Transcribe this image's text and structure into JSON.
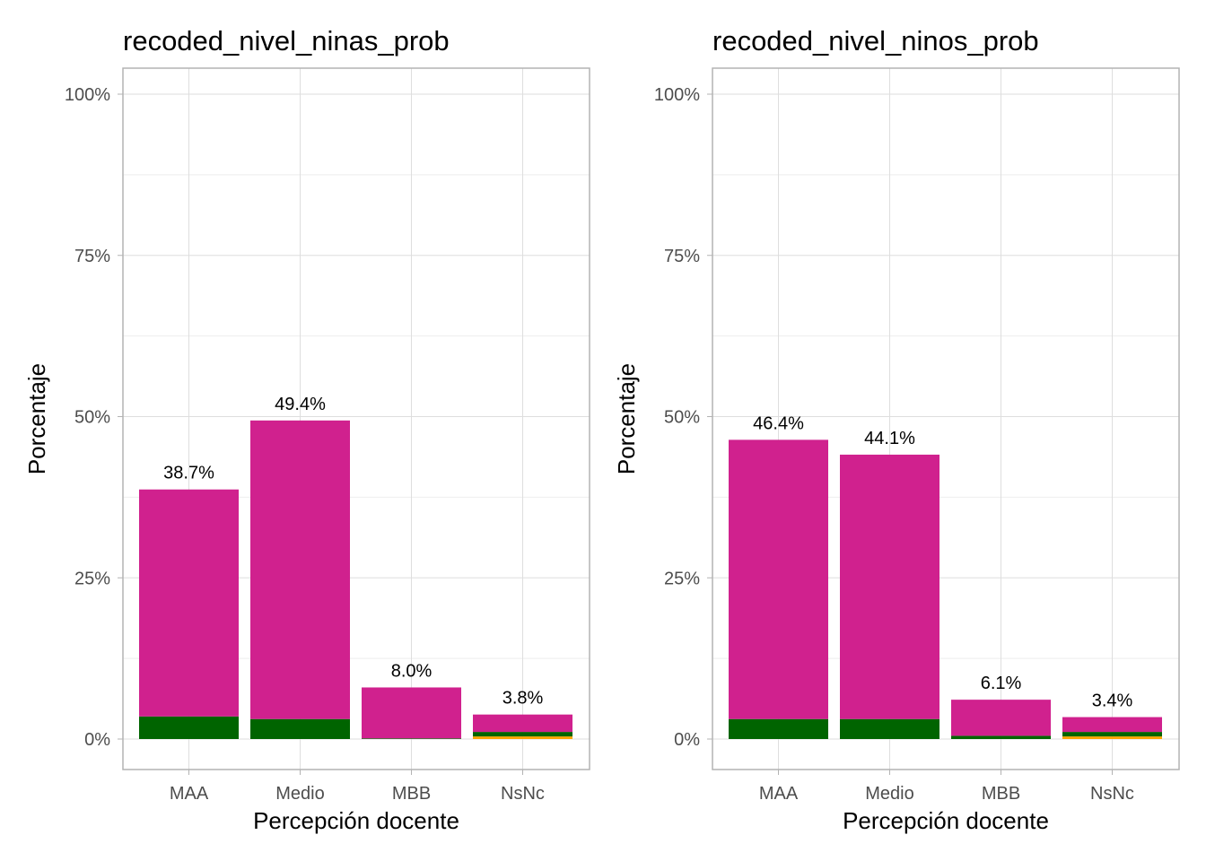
{
  "colors": {
    "background": "#ffffff",
    "grid_major": "#dedede",
    "grid_minor": "#eeeeee",
    "panel_border": "#b3b3b3",
    "tick_text": "#4d4d4d",
    "fill_magenta": "#d0218e",
    "fill_green": "#006400",
    "fill_orange": "#ffa500"
  },
  "chart_data": [
    {
      "type": "bar",
      "stacked": true,
      "title": "recoded_nivel_ninas_prob",
      "xlabel": "Percepción docente",
      "ylabel": "Porcentaje",
      "categories": [
        "MAA",
        "Medio",
        "MBB",
        "NsNc"
      ],
      "ylim": [
        0,
        100
      ],
      "yticks": [
        0,
        25,
        50,
        75,
        100
      ],
      "ytick_labels": [
        "0%",
        "25%",
        "50%",
        "75%",
        "100%"
      ],
      "grid": true,
      "legend": "none",
      "series": [
        {
          "color": "#ffa500",
          "values": [
            0,
            0,
            0,
            0.4
          ]
        },
        {
          "color": "#006400",
          "values": [
            3.5,
            3.1,
            0.1,
            0.7
          ]
        },
        {
          "color": "#d0218e",
          "values": [
            35.2,
            46.3,
            7.9,
            2.7
          ]
        }
      ],
      "totals": [
        38.7,
        49.4,
        8.0,
        3.8
      ],
      "data_labels": [
        "38.7%",
        "49.4%",
        "8.0%",
        "3.8%"
      ]
    },
    {
      "type": "bar",
      "stacked": true,
      "title": "recoded_nivel_ninos_prob",
      "xlabel": "Percepción docente",
      "ylabel": "Porcentaje",
      "categories": [
        "MAA",
        "Medio",
        "MBB",
        "NsNc"
      ],
      "ylim": [
        0,
        100
      ],
      "yticks": [
        0,
        25,
        50,
        75,
        100
      ],
      "ytick_labels": [
        "0%",
        "25%",
        "50%",
        "75%",
        "100%"
      ],
      "grid": true,
      "legend": "none",
      "series": [
        {
          "color": "#ffa500",
          "values": [
            0,
            0,
            0,
            0.4
          ]
        },
        {
          "color": "#006400",
          "values": [
            3.1,
            3.1,
            0.5,
            0.7
          ]
        },
        {
          "color": "#d0218e",
          "values": [
            43.3,
            41.0,
            5.6,
            2.3
          ]
        }
      ],
      "totals": [
        46.4,
        44.1,
        6.1,
        3.4
      ],
      "data_labels": [
        "46.4%",
        "44.1%",
        "6.1%",
        "3.4%"
      ]
    }
  ]
}
